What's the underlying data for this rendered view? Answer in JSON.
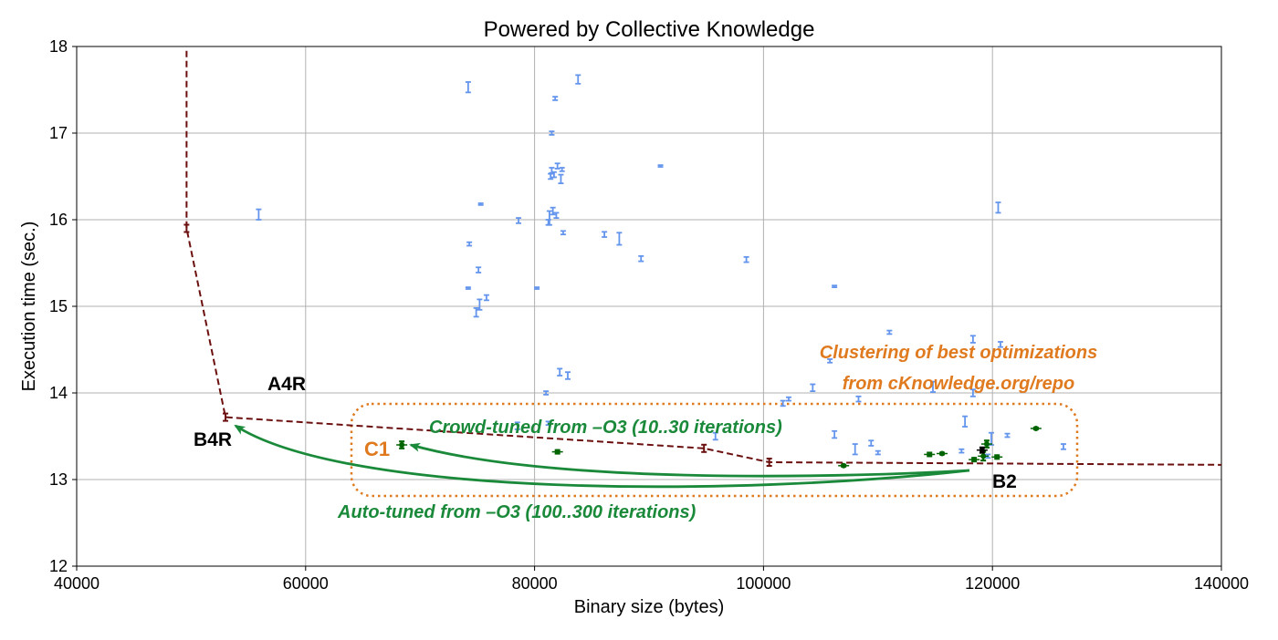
{
  "chart_data": {
    "type": "scatter",
    "title": "Powered by Collective Knowledge",
    "xlabel": "Binary size (bytes)",
    "ylabel": "Execution time (sec.)",
    "xlim": [
      40000,
      140000
    ],
    "ylim": [
      12,
      18
    ],
    "xticks": [
      40000,
      60000,
      80000,
      100000,
      120000,
      140000
    ],
    "yticks": [
      12,
      13,
      14,
      15,
      16,
      17,
      18
    ],
    "grid": true,
    "colors": {
      "random": "#6495ed",
      "best": "#006400",
      "frontier": "#6b0f0f",
      "crowd": "#1a8a3a",
      "cluster": "#e07a1f",
      "reference": "#000000"
    },
    "series": [
      {
        "points": [
          {
            "x": 74200,
            "y": 17.53,
            "e": 0.06
          },
          {
            "x": 81800,
            "y": 17.4,
            "e": 0.02
          },
          {
            "x": 83800,
            "y": 17.62,
            "e": 0.05
          },
          {
            "x": 81500,
            "y": 17.0,
            "e": 0.02
          },
          {
            "x": 91000,
            "y": 16.62,
            "e": 0.01
          },
          {
            "x": 82000,
            "y": 16.62,
            "e": 0.03
          },
          {
            "x": 81500,
            "y": 16.57,
            "e": 0.03
          },
          {
            "x": 81700,
            "y": 16.52,
            "e": 0.03
          },
          {
            "x": 82400,
            "y": 16.58,
            "e": 0.02
          },
          {
            "x": 82300,
            "y": 16.47,
            "e": 0.05
          },
          {
            "x": 81400,
            "y": 16.5,
            "e": 0.03
          },
          {
            "x": 55900,
            "y": 16.06,
            "e": 0.06
          },
          {
            "x": 75300,
            "y": 16.18,
            "e": 0.01
          },
          {
            "x": 78600,
            "y": 15.99,
            "e": 0.03
          },
          {
            "x": 81300,
            "y": 16.02,
            "e": 0.08
          },
          {
            "x": 81600,
            "y": 16.1,
            "e": 0.04
          },
          {
            "x": 81900,
            "y": 16.05,
            "e": 0.03
          },
          {
            "x": 81200,
            "y": 15.97,
            "e": 0.03
          },
          {
            "x": 82500,
            "y": 15.85,
            "e": 0.02
          },
          {
            "x": 86100,
            "y": 15.83,
            "e": 0.03
          },
          {
            "x": 87400,
            "y": 15.78,
            "e": 0.07
          },
          {
            "x": 89300,
            "y": 15.55,
            "e": 0.03
          },
          {
            "x": 98500,
            "y": 15.54,
            "e": 0.03
          },
          {
            "x": 120500,
            "y": 16.14,
            "e": 0.06
          },
          {
            "x": 74300,
            "y": 15.72,
            "e": 0.02
          },
          {
            "x": 75100,
            "y": 15.42,
            "e": 0.03
          },
          {
            "x": 74200,
            "y": 15.21,
            "e": 0.01
          },
          {
            "x": 80200,
            "y": 15.21,
            "e": 0.01
          },
          {
            "x": 75800,
            "y": 15.1,
            "e": 0.03
          },
          {
            "x": 75200,
            "y": 15.02,
            "e": 0.06
          },
          {
            "x": 74900,
            "y": 14.93,
            "e": 0.05
          },
          {
            "x": 106200,
            "y": 15.23,
            "e": 0.01
          },
          {
            "x": 111000,
            "y": 14.7,
            "e": 0.02
          },
          {
            "x": 118300,
            "y": 14.62,
            "e": 0.04
          },
          {
            "x": 120700,
            "y": 14.56,
            "e": 0.03
          },
          {
            "x": 105800,
            "y": 14.37,
            "e": 0.02
          },
          {
            "x": 82200,
            "y": 14.24,
            "e": 0.04
          },
          {
            "x": 82900,
            "y": 14.2,
            "e": 0.04
          },
          {
            "x": 81000,
            "y": 14.0,
            "e": 0.02
          },
          {
            "x": 104300,
            "y": 14.06,
            "e": 0.04
          },
          {
            "x": 102200,
            "y": 13.93,
            "e": 0.02
          },
          {
            "x": 101700,
            "y": 13.88,
            "e": 0.03
          },
          {
            "x": 108300,
            "y": 13.93,
            "e": 0.03
          },
          {
            "x": 114800,
            "y": 14.07,
            "e": 0.06
          },
          {
            "x": 117600,
            "y": 13.67,
            "e": 0.06
          },
          {
            "x": 118300,
            "y": 14.0,
            "e": 0.04
          },
          {
            "x": 78500,
            "y": 13.62,
            "e": 0.04
          },
          {
            "x": 81200,
            "y": 13.65,
            "e": 0.02
          },
          {
            "x": 95800,
            "y": 13.5,
            "e": 0.04
          },
          {
            "x": 106200,
            "y": 13.52,
            "e": 0.04
          },
          {
            "x": 109400,
            "y": 13.42,
            "e": 0.03
          },
          {
            "x": 108000,
            "y": 13.35,
            "e": 0.06
          },
          {
            "x": 110000,
            "y": 13.31,
            "e": 0.02
          },
          {
            "x": 117300,
            "y": 13.33,
            "e": 0.02
          },
          {
            "x": 119900,
            "y": 13.47,
            "e": 0.07
          },
          {
            "x": 121300,
            "y": 13.51,
            "e": 0.02
          },
          {
            "x": 126200,
            "y": 13.38,
            "e": 0.03
          },
          {
            "x": 119600,
            "y": 13.27,
            "e": 0.02
          }
        ]
      },
      {
        "points": [
          {
            "x": 68400,
            "y": 13.4,
            "e": 0.04
          },
          {
            "x": 82000,
            "y": 13.32,
            "e": 0.02
          },
          {
            "x": 107000,
            "y": 13.16,
            "e": 0.01
          },
          {
            "x": 114500,
            "y": 13.29,
            "e": 0.02
          },
          {
            "x": 115600,
            "y": 13.3,
            "e": 0.01
          },
          {
            "x": 118400,
            "y": 13.23,
            "e": 0.02
          },
          {
            "x": 119200,
            "y": 13.27,
            "e": 0.05
          },
          {
            "x": 119500,
            "y": 13.41,
            "e": 0.04
          },
          {
            "x": 120400,
            "y": 13.26,
            "e": 0.02
          },
          {
            "x": 123800,
            "y": 13.59,
            "e": 0.01
          }
        ]
      },
      {
        "points": [
          {
            "x": 119100,
            "y": 13.34,
            "e": 0.03
          }
        ]
      },
      {
        "points": [
          {
            "x": 49600,
            "y": 17.95
          },
          {
            "x": 49600,
            "y": 15.9
          },
          {
            "x": 53000,
            "y": 13.72
          },
          {
            "x": 94800,
            "y": 13.36
          },
          {
            "x": 100500,
            "y": 13.2
          },
          {
            "x": 140000,
            "y": 13.17
          }
        ]
      }
    ],
    "annotations": {
      "a4r": "A4R",
      "b4r": "B4R",
      "c1": "C1",
      "b2": "B2",
      "crowd": "Crowd-tuned from –O3 (10..30 iterations)",
      "auto": "Auto-tuned from –O3 (100..300 iterations)",
      "cluster_line1": "Clustering of best optimizations",
      "cluster_line2": "from cKnowledge.org/repo"
    }
  }
}
